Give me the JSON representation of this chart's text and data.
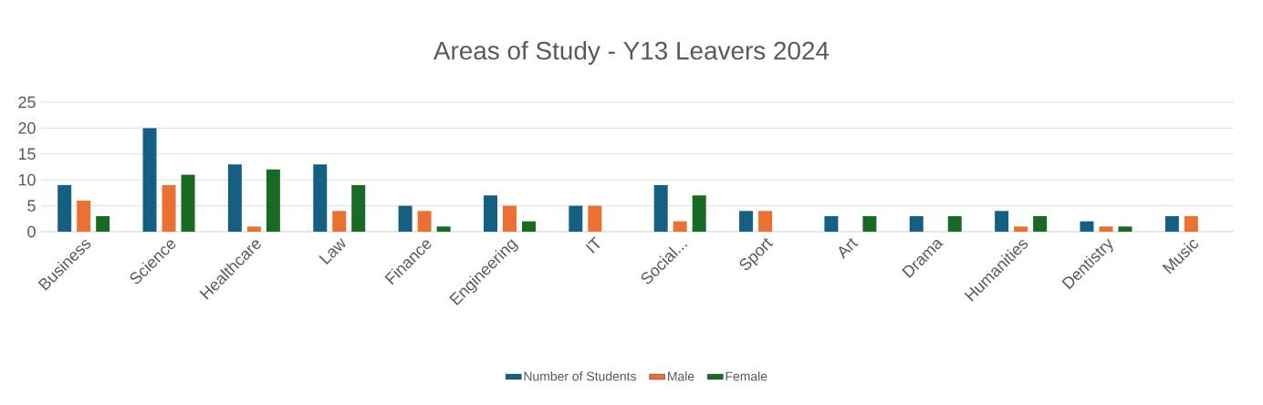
{
  "chart_data": {
    "type": "bar",
    "title": "Areas of Study - Y13 Leavers 2024",
    "categories": [
      "Business",
      "Science",
      "Healthcare",
      "Law",
      "Finance",
      "Engineering",
      "IT",
      "Social...",
      "Sport",
      "Art",
      "Drama",
      "Humanities",
      "Dentistry",
      "Music"
    ],
    "series": [
      {
        "name": "Number of Students",
        "color": "#156082",
        "values": [
          9,
          20,
          13,
          13,
          5,
          7,
          5,
          9,
          4,
          3,
          3,
          4,
          2,
          3
        ]
      },
      {
        "name": "Male",
        "color": "#e97132",
        "values": [
          6,
          9,
          1,
          4,
          4,
          5,
          5,
          2,
          4,
          0,
          0,
          1,
          1,
          3
        ]
      },
      {
        "name": "Female",
        "color": "#196b24",
        "values": [
          3,
          11,
          12,
          9,
          1,
          2,
          0,
          7,
          0,
          3,
          3,
          3,
          1,
          0
        ]
      }
    ],
    "ylim": [
      0,
      25
    ],
    "yticks": [
      0,
      5,
      10,
      15,
      20,
      25
    ],
    "grid": "y",
    "legend": "bottom"
  }
}
